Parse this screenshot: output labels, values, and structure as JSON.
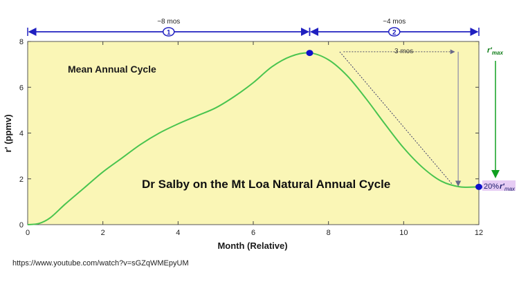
{
  "chart_data": {
    "type": "line",
    "title": "Mean Annual Cycle",
    "annotation": "Dr Salby on the Mt Loa Natural Annual Cycle",
    "xlabel": "Month (Relative)",
    "ylabel": "r' (ppmv)",
    "xlim": [
      0,
      12
    ],
    "ylim": [
      0,
      8
    ],
    "xticks": [
      "0",
      "2",
      "4",
      "6",
      "8",
      "10",
      "12"
    ],
    "yticks": [
      "0",
      "2",
      "4",
      "6",
      "8"
    ],
    "grid": false,
    "series": [
      {
        "x": [
          0,
          0.3,
          0.6,
          1,
          1.5,
          2,
          2.5,
          3,
          3.5,
          4,
          4.5,
          5,
          5.5,
          6,
          6.5,
          7,
          7.5,
          8,
          8.5,
          9,
          9.5,
          10,
          10.5,
          11,
          11.5,
          12
        ],
        "y": [
          0,
          0.05,
          0.3,
          0.9,
          1.6,
          2.3,
          2.9,
          3.5,
          4.0,
          4.4,
          4.75,
          5.1,
          5.6,
          6.2,
          6.9,
          7.35,
          7.5,
          7.2,
          6.5,
          5.5,
          4.4,
          3.35,
          2.5,
          1.9,
          1.65,
          1.65
        ],
        "color": "#49c44f"
      }
    ],
    "markers": [
      {
        "x": 7.5,
        "y": 7.5,
        "color": "#1010cc"
      },
      {
        "x": 12,
        "y": 1.65,
        "color": "#1010cc"
      }
    ],
    "intervals": [
      {
        "label": "~8 mos",
        "badge": "1",
        "x": [
          0,
          7.5
        ]
      },
      {
        "label": "~4 mos",
        "badge": "2",
        "x": [
          7.5,
          12
        ]
      }
    ],
    "three_months_label": "3 mos",
    "rmax_label": {
      "main": "r'",
      "sub": "max"
    },
    "pct_label": {
      "prefix": "20%",
      "main": "r'",
      "sub": "max"
    },
    "colors": {
      "plot_bg": "#faf6b6",
      "line": "#49c44f",
      "interval": "#2020c0",
      "rmax_arrow": "#10a020",
      "pct_bg": "#e6ccf4"
    }
  },
  "footer": {
    "url": "https://www.youtube.com/watch?v=sGZqWMEpyUM"
  }
}
